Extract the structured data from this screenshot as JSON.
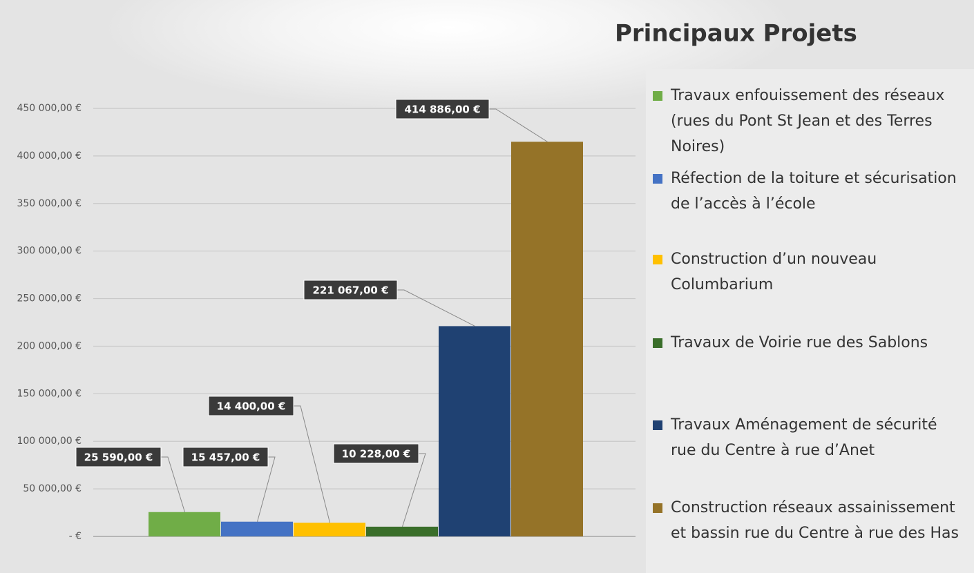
{
  "chart_data": {
    "type": "bar",
    "title": "Principaux Projets",
    "categories": [
      "Travaux enfouissement des réseaux (rues du Pont St Jean et des Terres Noires)",
      "Réfection de la toiture et sécurisation de l’accès à l’école",
      "Construction d’un nouveau Columbarium",
      "Travaux de Voirie rue des Sablons",
      "Travaux Aménagement de sécurité rue du Centre à rue d’Anet",
      "Construction réseaux assainissement et bassin rue du Centre à rue des Has"
    ],
    "values": [
      25590,
      15457,
      14400,
      10228,
      221067,
      414886
    ],
    "value_labels": [
      "25 590,00 €",
      "15 457,00 €",
      "14 400,00 €",
      "10 228,00 €",
      "221 067,00 €",
      "414 886,00 €"
    ],
    "colors": [
      "#70ad47",
      "#4472c4",
      "#ffc000",
      "#3a6e2a",
      "#1f4172",
      "#957328"
    ],
    "ylim": [
      0,
      450000
    ],
    "yticks": [
      {
        "value": 0,
        "label": "-  €"
      },
      {
        "value": 50000,
        "label": "50 000,00 €"
      },
      {
        "value": 100000,
        "label": "100 000,00 €"
      },
      {
        "value": 150000,
        "label": "150 000,00 €"
      },
      {
        "value": 200000,
        "label": "200 000,00 €"
      },
      {
        "value": 250000,
        "label": "250 000,00 €"
      },
      {
        "value": 300000,
        "label": "300 000,00 €"
      },
      {
        "value": 350000,
        "label": "350 000,00 €"
      },
      {
        "value": 400000,
        "label": "400 000,00 €"
      },
      {
        "value": 450000,
        "label": "450 000,00 €"
      }
    ],
    "grid": true,
    "legend": "right"
  }
}
